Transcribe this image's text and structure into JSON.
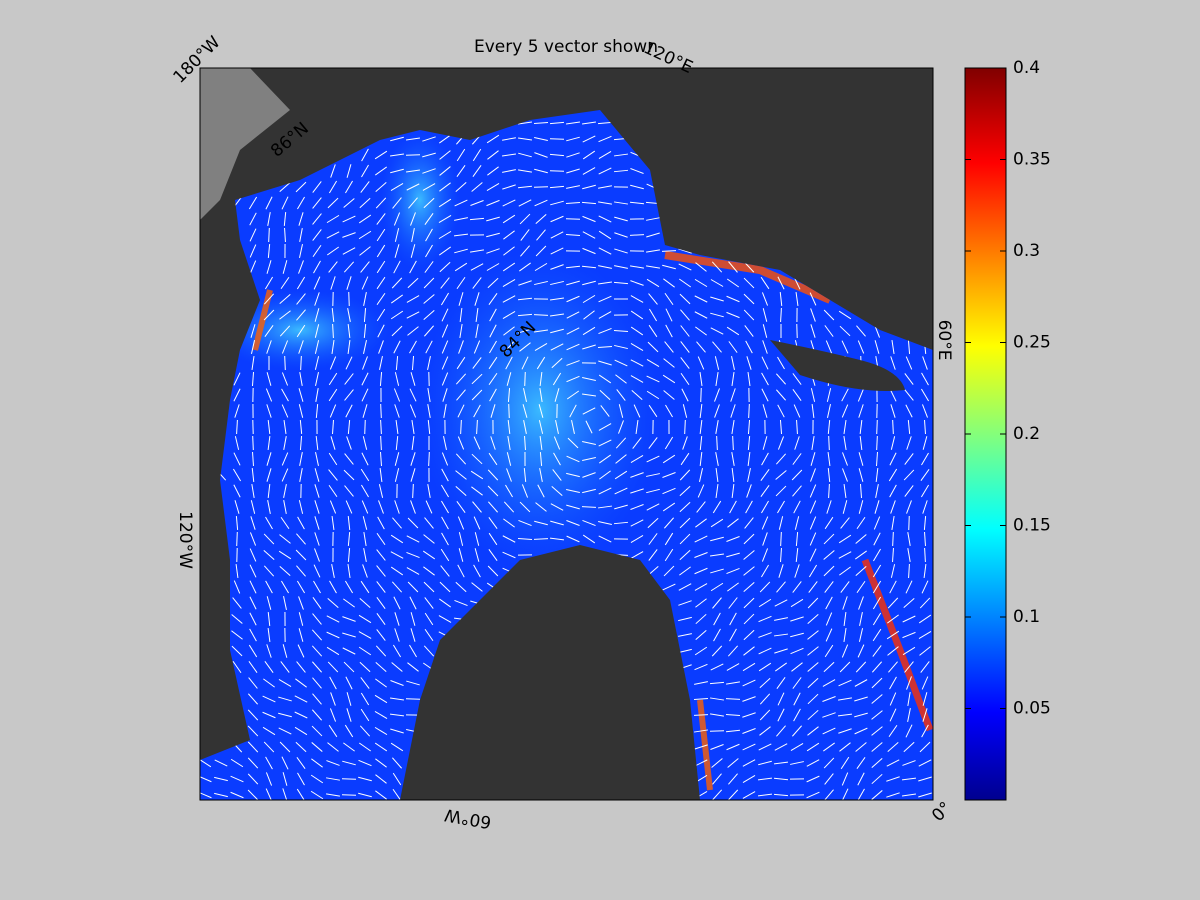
{
  "map": {
    "title": "Every 5 vector shown",
    "lon_labels": [
      "180°W",
      "120°E",
      "60°E",
      "0°",
      "60°W",
      "120°W"
    ],
    "lat_labels": [
      "86°N",
      "84°N"
    ],
    "colorbar": {
      "lim": [
        0,
        0.4
      ],
      "ticks": [
        0.05,
        0.1,
        0.15,
        0.2,
        0.25,
        0.3,
        0.35,
        0.4
      ]
    }
  }
}
